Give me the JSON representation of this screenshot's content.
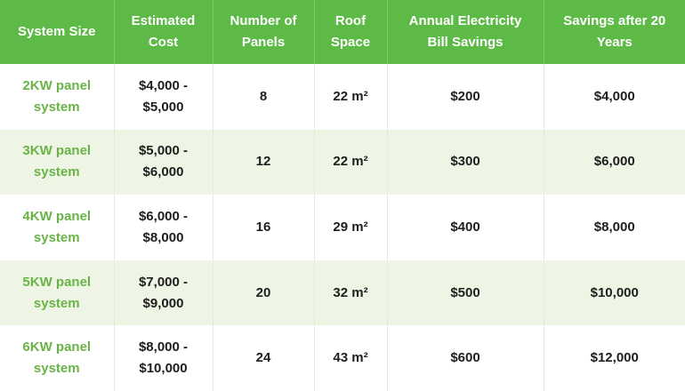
{
  "table": {
    "header": [
      "System Size",
      "Estimated Cost",
      "Number of Panels",
      "Roof Space",
      "Annual Electricity Bill Savings",
      "Savings after 20 Years"
    ],
    "rows": [
      [
        "2KW panel system",
        "$4,000 - $5,000",
        "8",
        "22 m²",
        "$200",
        "$4,000"
      ],
      [
        "3KW panel system",
        "$5,000 - $6,000",
        "12",
        "22 m²",
        "$300",
        "$6,000"
      ],
      [
        "4KW panel system",
        "$6,000 - $8,000",
        "16",
        "29 m²",
        "$400",
        "$8,000"
      ],
      [
        "5KW panel system",
        "$7,000 - $9,000",
        "20",
        "32 m²",
        "$500",
        "$10,000"
      ],
      [
        "6KW panel system",
        "$8,000 - $10,000",
        "24",
        "43 m²",
        "$600",
        "$12,000"
      ]
    ]
  }
}
